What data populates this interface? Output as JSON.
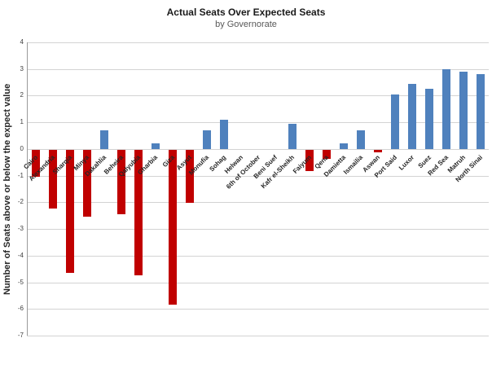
{
  "chart_data": {
    "type": "bar",
    "title": "Actual Seats Over Expected Seats",
    "subtitle": "by Governorate",
    "ylabel": "Number of  Seats above or below the expect value",
    "xlabel": "",
    "ylim": [
      -7,
      4
    ],
    "yticks": [
      4,
      3,
      2,
      1,
      0,
      -1,
      -2,
      -3,
      -4,
      -5,
      -6,
      -7
    ],
    "grid": true,
    "legend": "none",
    "categories": [
      "Cairo",
      "Alexandria",
      "Sharqia",
      "Minya",
      "Dakahlia",
      "Beheira",
      "Qalyubia",
      "Gharbia",
      "Giza",
      "Asyut",
      "Monufia",
      "Sohag",
      "Helwan",
      "6th of October",
      "Beni Suef",
      "Kafr el-Sheikh",
      "Faiyum",
      "Qena",
      "Damietta",
      "Ismailia",
      "Aswan",
      "Port Said",
      "Luxor",
      "Suez",
      "Red Sea",
      "Matruh",
      "North Sinai"
    ],
    "values": [
      -1.0,
      -2.2,
      -4.6,
      -2.5,
      0.7,
      -2.4,
      -4.7,
      0.2,
      -5.8,
      -2.0,
      0.7,
      1.1,
      0,
      0,
      0,
      0.95,
      -0.8,
      -0.35,
      0.2,
      0.7,
      -0.1,
      2.05,
      2.45,
      2.25,
      3.0,
      2.9,
      2.8
    ],
    "positive_color": "#4F81BD",
    "negative_color": "#C00000",
    "gridline_color": "#d3d3d3",
    "axis_color": "#9a9a9a"
  }
}
